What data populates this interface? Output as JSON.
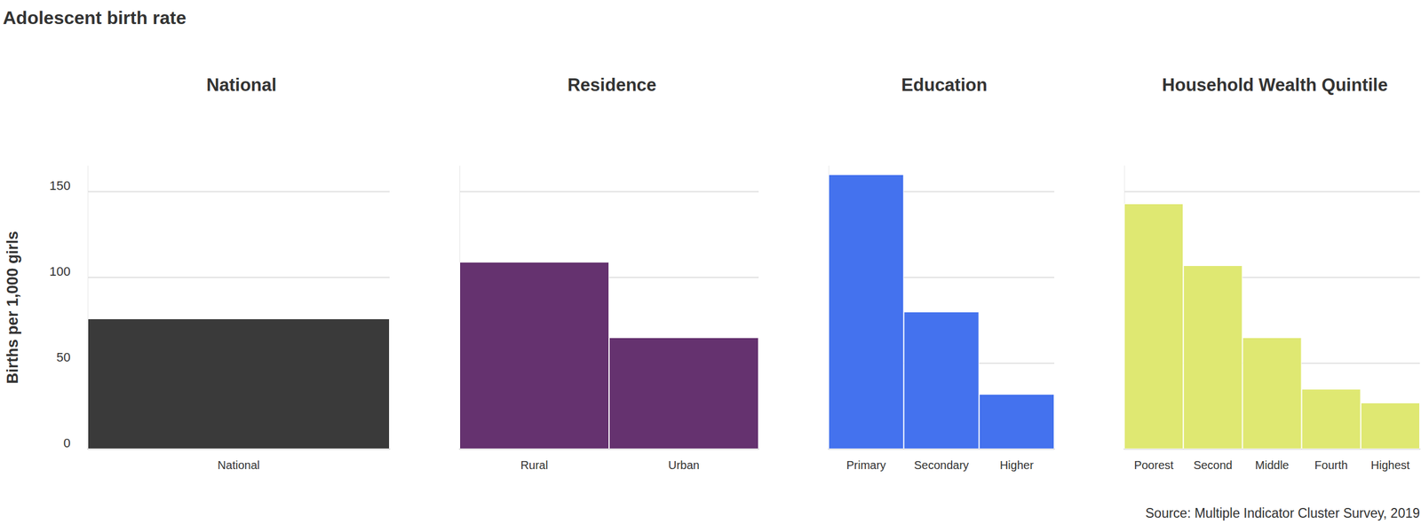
{
  "title": "Adolescent birth rate",
  "source": "Source: Multiple Indicator Cluster Survey, 2019",
  "chart_data": [
    {
      "type": "bar",
      "title": "National",
      "ylabel": "Births per 1,000 girls",
      "categories": [
        "National"
      ],
      "values": [
        76
      ],
      "color": "#3a3a3a",
      "ylim": [
        0,
        165
      ],
      "yticks": [
        0,
        50,
        100,
        150
      ],
      "grid": true
    },
    {
      "type": "bar",
      "title": "Residence",
      "categories": [
        "Rural",
        "Urban"
      ],
      "values": [
        109,
        65
      ],
      "color": "#65326f",
      "ylim": [
        0,
        165
      ],
      "yticks": [
        0,
        50,
        100,
        150
      ],
      "grid": true,
      "tick_labels": "x"
    },
    {
      "type": "bar",
      "title": "Education",
      "categories": [
        "Primary",
        "Secondary",
        "Higher"
      ],
      "values": [
        160,
        80,
        32
      ],
      "color": "#4472ee",
      "ylim": [
        0,
        165
      ],
      "yticks": [
        0,
        50,
        100,
        150
      ],
      "grid": true,
      "tick_labels": "x"
    },
    {
      "type": "bar",
      "title": "Household Wealth Quintile",
      "categories": [
        "Poorest",
        "Second",
        "Middle",
        "Fourth",
        "Highest"
      ],
      "values": [
        143,
        107,
        65,
        35,
        27
      ],
      "color": "#dfe872",
      "ylim": [
        0,
        165
      ],
      "yticks": [
        0,
        50,
        100,
        150
      ],
      "grid": true,
      "tick_labels": "x"
    }
  ]
}
